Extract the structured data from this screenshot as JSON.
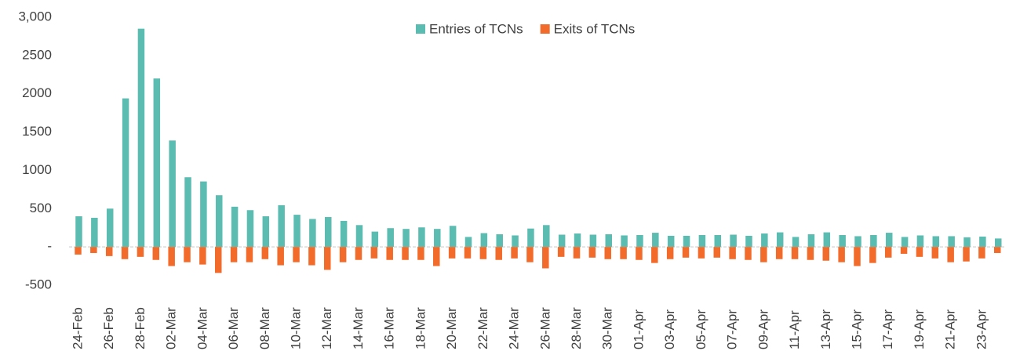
{
  "chart_data": {
    "type": "bar",
    "categories": [
      "24-Feb",
      null,
      "26-Feb",
      null,
      "28-Feb",
      null,
      "02-Mar",
      null,
      "04-Mar",
      null,
      "06-Mar",
      null,
      "08-Mar",
      null,
      "10-Mar",
      null,
      "12-Mar",
      null,
      "14-Mar",
      null,
      "16-Mar",
      null,
      "18-Mar",
      null,
      "20-Mar",
      null,
      "22-Mar",
      null,
      "24-Mar",
      null,
      "26-Mar",
      null,
      "28-Mar",
      null,
      "30-Mar",
      null,
      "01-Apr",
      null,
      "03-Apr",
      null,
      "05-Apr",
      null,
      "07-Apr",
      null,
      "09-Apr",
      null,
      "11-Apr",
      null,
      "13-Apr",
      null,
      "15-Apr",
      null,
      "17-Apr",
      null,
      "19-Apr",
      null,
      "21-Apr",
      null,
      "23-Apr",
      null
    ],
    "series": [
      {
        "name": "Entries of TCNs",
        "color": "#5bbcb1",
        "values": [
          400,
          380,
          500,
          1940,
          2850,
          2200,
          1390,
          910,
          855,
          675,
          525,
          480,
          400,
          545,
          420,
          365,
          390,
          340,
          285,
          200,
          245,
          235,
          255,
          235,
          275,
          130,
          180,
          165,
          150,
          240,
          285,
          160,
          175,
          160,
          165,
          150,
          155,
          185,
          145,
          145,
          155,
          155,
          160,
          145,
          175,
          190,
          130,
          165,
          190,
          155,
          140,
          155,
          185,
          130,
          150,
          140,
          140,
          125,
          135,
          110
        ]
      },
      {
        "name": "Exits of TCNs",
        "color": "#f26b2b",
        "values": [
          -100,
          -80,
          -120,
          -160,
          -130,
          -170,
          -250,
          -200,
          -230,
          -340,
          -200,
          -200,
          -160,
          -240,
          -200,
          -240,
          -300,
          -200,
          -170,
          -150,
          -170,
          -170,
          -170,
          -250,
          -150,
          -150,
          -160,
          -170,
          -150,
          -200,
          -280,
          -130,
          -150,
          -140,
          -160,
          -160,
          -170,
          -210,
          -160,
          -140,
          -150,
          -140,
          -160,
          -170,
          -200,
          -160,
          -160,
          -170,
          -180,
          -200,
          -250,
          -210,
          -140,
          -90,
          -130,
          -150,
          -200,
          -190,
          -150,
          -80
        ]
      }
    ],
    "ylim": [
      -500,
      3000
    ],
    "yticks": [
      {
        "value": -500,
        "label": "-500"
      },
      {
        "value": 0,
        "label": "-"
      },
      500,
      1000,
      1500,
      2000,
      2500,
      {
        "value": 3000,
        "label": "3,000"
      }
    ],
    "legend": "top"
  }
}
